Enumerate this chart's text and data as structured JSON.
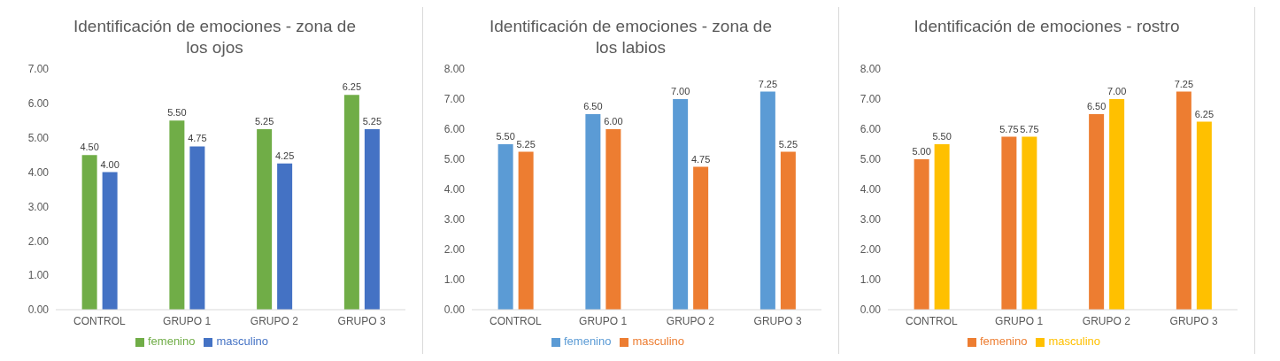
{
  "chart_data": [
    {
      "type": "bar",
      "title": "Identificación de emociones - zona de los ojos",
      "categories": [
        "CONTROL",
        "GRUPO 1",
        "GRUPO 2",
        "GRUPO 3"
      ],
      "series": [
        {
          "name": "femenino",
          "color": "#70ad47",
          "values": [
            4.5,
            5.5,
            5.25,
            6.25
          ],
          "value_labels": [
            "4.50",
            "5.50",
            "5.25",
            "6.25"
          ]
        },
        {
          "name": "masculino",
          "color": "#4472c4",
          "values": [
            4.0,
            4.75,
            4.25,
            5.25
          ],
          "value_labels": [
            "4.00",
            "4.75",
            "4.25",
            "5.25"
          ]
        }
      ],
      "ylim": [
        0,
        7
      ],
      "yticks": [
        {
          "value": 0,
          "label": "0.00"
        },
        {
          "value": 1,
          "label": "1.00"
        },
        {
          "value": 2,
          "label": "2.00"
        },
        {
          "value": 3,
          "label": "3.00"
        },
        {
          "value": 4,
          "label": "4.00"
        },
        {
          "value": 5,
          "label": "5.00"
        },
        {
          "value": 6,
          "label": "6.00"
        },
        {
          "value": 7,
          "label": "7.00"
        }
      ],
      "legend": "bottom"
    },
    {
      "type": "bar",
      "title": "Identificación de emociones - zona de los labios",
      "categories": [
        "CONTROL",
        "GRUPO 1",
        "GRUPO 2",
        "GRUPO 3"
      ],
      "series": [
        {
          "name": "femenino",
          "color": "#5b9bd5",
          "values": [
            5.5,
            6.5,
            7.0,
            7.25
          ],
          "value_labels": [
            "5.50",
            "6.50",
            "7.00",
            "7.25"
          ]
        },
        {
          "name": "masculino",
          "color": "#ed7d31",
          "values": [
            5.25,
            6.0,
            4.75,
            5.25
          ],
          "value_labels": [
            "5.25",
            "6.00",
            "4.75",
            "5.25"
          ]
        }
      ],
      "ylim": [
        0,
        8
      ],
      "yticks": [
        {
          "value": 0,
          "label": "0.00"
        },
        {
          "value": 1,
          "label": "1.00"
        },
        {
          "value": 2,
          "label": "2.00"
        },
        {
          "value": 3,
          "label": "3.00"
        },
        {
          "value": 4,
          "label": "4.00"
        },
        {
          "value": 5,
          "label": "5.00"
        },
        {
          "value": 6,
          "label": "6.00"
        },
        {
          "value": 7,
          "label": "7.00"
        },
        {
          "value": 8,
          "label": "8.00"
        }
      ],
      "legend": "bottom"
    },
    {
      "type": "bar",
      "title": "Identificación de emociones - rostro",
      "categories": [
        "CONTROL",
        "GRUPO 1",
        "GRUPO 2",
        "GRUPO 3"
      ],
      "series": [
        {
          "name": "femenino",
          "color": "#ed7d31",
          "values": [
            5.0,
            5.75,
            6.5,
            7.25
          ],
          "value_labels": [
            "5.00",
            "5.75",
            "6.50",
            "7.25"
          ]
        },
        {
          "name": "masculino",
          "color": "#ffc000",
          "values": [
            5.5,
            5.75,
            7.0,
            6.25
          ],
          "value_labels": [
            "5.50",
            "5.75",
            "7.00",
            "6.25"
          ]
        }
      ],
      "ylim": [
        0,
        8
      ],
      "yticks": [
        {
          "value": 0,
          "label": "0.00"
        },
        {
          "value": 1,
          "label": "1.00"
        },
        {
          "value": 2,
          "label": "2.00"
        },
        {
          "value": 3,
          "label": "3.00"
        },
        {
          "value": 4,
          "label": "4.00"
        },
        {
          "value": 5,
          "label": "5.00"
        },
        {
          "value": 6,
          "label": "6.00"
        },
        {
          "value": 7,
          "label": "7.00"
        },
        {
          "value": 8,
          "label": "8.00"
        }
      ],
      "legend": "bottom"
    }
  ]
}
